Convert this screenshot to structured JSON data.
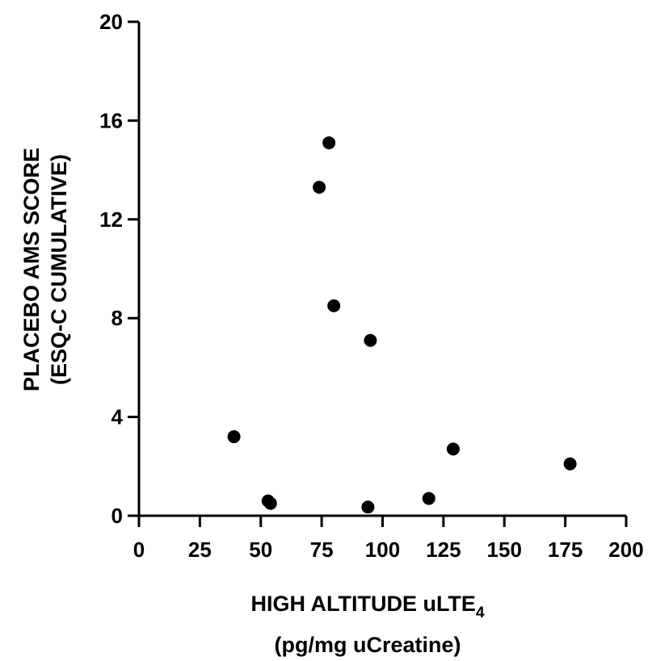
{
  "chart_data": {
    "type": "scatter",
    "xlabel": {
      "line1_prefix": "HIGH ALTITUDE uLTE",
      "line1_subscript": "4",
      "line2": "(pg/mg uCreatine)"
    },
    "ylabel": {
      "line1": "PLACEBO AMS SCORE",
      "line2": "(ESQ-C CUMULATIVE)"
    },
    "xlim": [
      0,
      200
    ],
    "ylim": [
      0,
      20
    ],
    "x_ticks": [
      0,
      25,
      50,
      75,
      100,
      125,
      150,
      175,
      200
    ],
    "y_ticks": [
      0,
      4,
      8,
      12,
      16,
      20
    ],
    "grid": false,
    "marker_color": "#000000",
    "points": [
      {
        "x": 39,
        "y": 3.2
      },
      {
        "x": 53,
        "y": 0.6
      },
      {
        "x": 54,
        "y": 0.5
      },
      {
        "x": 74,
        "y": 13.3
      },
      {
        "x": 78,
        "y": 15.1
      },
      {
        "x": 80,
        "y": 8.5
      },
      {
        "x": 94,
        "y": 0.35
      },
      {
        "x": 95,
        "y": 7.1
      },
      {
        "x": 119,
        "y": 0.7
      },
      {
        "x": 129,
        "y": 2.7
      },
      {
        "x": 177,
        "y": 2.1
      }
    ]
  }
}
